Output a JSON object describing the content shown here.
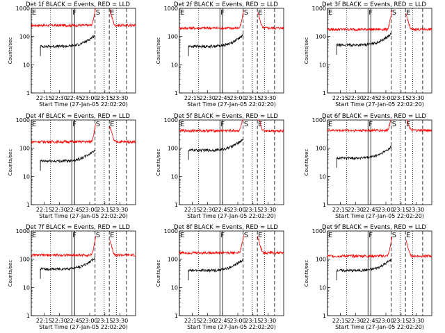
{
  "chart_data": [
    {
      "type": "line",
      "title": "Det 1f BLACK = Events, RED = LLD",
      "xlabel": "Start Time (27-Jan-05 22:02:20)",
      "ylabel": "Counts/sec",
      "yscale": "log",
      "ylim": [
        1,
        1000
      ],
      "yticks": [
        "1",
        "10",
        "100",
        "1000"
      ],
      "xlim_minutes": [
        0,
        103
      ],
      "xticks": [
        {
          "label": "22:15",
          "minutes": 12.67
        },
        {
          "label": "22:30",
          "minutes": 27.67
        },
        {
          "label": "22:45",
          "minutes": 42.67
        },
        {
          "label": "23:00",
          "minutes": 57.67
        },
        {
          "label": "23:15",
          "minutes": 72.67
        },
        {
          "label": "23:30",
          "minutes": 87.67
        }
      ],
      "series": [
        {
          "color": "#ff0000",
          "profile": {
            "start": 0,
            "end": 103,
            "base": 250,
            "gap": [
              64,
              77
            ]
          }
        },
        {
          "color": "#000000",
          "profile": {
            "start": 9,
            "end": 63,
            "base": 45,
            "gap": null
          }
        }
      ]
    },
    {
      "type": "line",
      "title": "Det 2f BLACK = Events, RED = LLD",
      "xlabel": "Start Time (27-Jan-05 22:02:20)",
      "ylabel": "Counts/sec",
      "yscale": "log",
      "ylim": [
        1,
        1000
      ],
      "yticks": [
        "1",
        "10",
        "100",
        "1000"
      ],
      "xlim_minutes": [
        0,
        103
      ],
      "xticks": [
        {
          "label": "22:15",
          "minutes": 12.67
        },
        {
          "label": "22:30",
          "minutes": 27.67
        },
        {
          "label": "22:45",
          "minutes": 42.67
        },
        {
          "label": "23:00",
          "minutes": 57.67
        },
        {
          "label": "23:15",
          "minutes": 72.67
        },
        {
          "label": "23:30",
          "minutes": 87.67
        }
      ],
      "series": [
        {
          "color": "#ff0000",
          "profile": {
            "start": 0,
            "end": 103,
            "base": 200,
            "gap": [
              64,
              77
            ]
          }
        },
        {
          "color": "#000000",
          "profile": {
            "start": 9,
            "end": 63,
            "base": 45,
            "gap": null
          }
        }
      ]
    },
    {
      "type": "line",
      "title": "Det 3f BLACK = Events, RED = LLD",
      "xlabel": "Start Time (27-Jan-05 22:02:20)",
      "ylabel": "Counts/sec",
      "yscale": "log",
      "ylim": [
        1,
        1000
      ],
      "yticks": [
        "1",
        "10",
        "100",
        "1000"
      ],
      "xlim_minutes": [
        0,
        103
      ],
      "xticks": [
        {
          "label": "22:15",
          "minutes": 12.67
        },
        {
          "label": "22:30",
          "minutes": 27.67
        },
        {
          "label": "22:45",
          "minutes": 42.67
        },
        {
          "label": "23:00",
          "minutes": 57.67
        },
        {
          "label": "23:15",
          "minutes": 72.67
        },
        {
          "label": "23:30",
          "minutes": 87.67
        }
      ],
      "series": [
        {
          "color": "#ff0000",
          "profile": {
            "start": 0,
            "end": 103,
            "base": 180,
            "gap": [
              64,
              77
            ]
          }
        },
        {
          "color": "#000000",
          "profile": {
            "start": 9,
            "end": 63,
            "base": 50,
            "gap": null
          }
        }
      ]
    },
    {
      "type": "line",
      "title": "Det 4f BLACK = Events, RED = LLD",
      "xlabel": "Start Time (27-Jan-05 22:02:20)",
      "ylabel": "Counts/sec",
      "yscale": "log",
      "ylim": [
        1,
        1000
      ],
      "yticks": [
        "1",
        "10",
        "100",
        "1000"
      ],
      "xlim_minutes": [
        0,
        103
      ],
      "xticks": [
        {
          "label": "22:15",
          "minutes": 12.67
        },
        {
          "label": "22:30",
          "minutes": 27.67
        },
        {
          "label": "22:45",
          "minutes": 42.67
        },
        {
          "label": "23:00",
          "minutes": 57.67
        },
        {
          "label": "23:15",
          "minutes": 72.67
        },
        {
          "label": "23:30",
          "minutes": 87.67
        }
      ],
      "series": [
        {
          "color": "#ff0000",
          "profile": {
            "start": 0,
            "end": 103,
            "base": 170,
            "gap": [
              64,
              77
            ]
          }
        },
        {
          "color": "#000000",
          "profile": {
            "start": 9,
            "end": 63,
            "base": 35,
            "gap": null
          }
        }
      ]
    },
    {
      "type": "line",
      "title": "Det 5f BLACK = Events, RED = LLD",
      "xlabel": "Start Time (27-Jan-05 22:02:20)",
      "ylabel": "Counts/sec",
      "yscale": "log",
      "ylim": [
        1,
        1000
      ],
      "yticks": [
        "1",
        "10",
        "100",
        "1000"
      ],
      "xlim_minutes": [
        0,
        103
      ],
      "xticks": [
        {
          "label": "22:15",
          "minutes": 12.67
        },
        {
          "label": "22:30",
          "minutes": 27.67
        },
        {
          "label": "22:45",
          "minutes": 42.67
        },
        {
          "label": "23:00",
          "minutes": 57.67
        },
        {
          "label": "23:15",
          "minutes": 72.67
        },
        {
          "label": "23:30",
          "minutes": 87.67
        }
      ],
      "series": [
        {
          "color": "#ff0000",
          "profile": {
            "start": 0,
            "end": 103,
            "base": 420,
            "gap": [
              64,
              77
            ]
          }
        },
        {
          "color": "#000000",
          "profile": {
            "start": 9,
            "end": 63,
            "base": 85,
            "gap": null
          }
        }
      ]
    },
    {
      "type": "line",
      "title": "Det 6f BLACK = Events, RED = LLD",
      "xlabel": "Start Time (27-Jan-05 22:02:20)",
      "ylabel": "Counts/sec",
      "yscale": "log",
      "ylim": [
        1,
        1000
      ],
      "yticks": [
        "1",
        "10",
        "100",
        "1000"
      ],
      "xlim_minutes": [
        0,
        103
      ],
      "xticks": [
        {
          "label": "22:15",
          "minutes": 12.67
        },
        {
          "label": "22:30",
          "minutes": 27.67
        },
        {
          "label": "22:45",
          "minutes": 42.67
        },
        {
          "label": "23:00",
          "minutes": 57.67
        },
        {
          "label": "23:15",
          "minutes": 72.67
        },
        {
          "label": "23:30",
          "minutes": 87.67
        }
      ],
      "series": [
        {
          "color": "#ff0000",
          "profile": {
            "start": 0,
            "end": 103,
            "base": 430,
            "gap": [
              64,
              77
            ]
          }
        },
        {
          "color": "#000000",
          "profile": {
            "start": 9,
            "end": 63,
            "base": 45,
            "gap": null
          }
        }
      ]
    },
    {
      "type": "line",
      "title": "Det 7f BLACK = Events, RED = LLD",
      "xlabel": "Start Time (27-Jan-05 22:02:20)",
      "ylabel": "Counts/sec",
      "yscale": "log",
      "ylim": [
        1,
        1000
      ],
      "yticks": [
        "1",
        "10",
        "100",
        "1000"
      ],
      "xlim_minutes": [
        0,
        103
      ],
      "xticks": [
        {
          "label": "22:15",
          "minutes": 12.67
        },
        {
          "label": "22:30",
          "minutes": 27.67
        },
        {
          "label": "22:45",
          "minutes": 42.67
        },
        {
          "label": "23:00",
          "minutes": 57.67
        },
        {
          "label": "23:15",
          "minutes": 72.67
        },
        {
          "label": "23:30",
          "minutes": 87.67
        }
      ],
      "series": [
        {
          "color": "#ff0000",
          "profile": {
            "start": 0,
            "end": 103,
            "base": 140,
            "gap": [
              64,
              77
            ]
          }
        },
        {
          "color": "#000000",
          "profile": {
            "start": 9,
            "end": 63,
            "base": 45,
            "gap": null
          }
        }
      ]
    },
    {
      "type": "line",
      "title": "Det 8f BLACK = Events, RED = LLD",
      "xlabel": "Start Time (27-Jan-05 22:02:20)",
      "ylabel": "Counts/sec",
      "yscale": "log",
      "ylim": [
        1,
        1000
      ],
      "yticks": [
        "1",
        "10",
        "100",
        "1000"
      ],
      "xlim_minutes": [
        0,
        103
      ],
      "xticks": [
        {
          "label": "22:15",
          "minutes": 12.67
        },
        {
          "label": "22:30",
          "minutes": 27.67
        },
        {
          "label": "22:45",
          "minutes": 42.67
        },
        {
          "label": "23:00",
          "minutes": 57.67
        },
        {
          "label": "23:15",
          "minutes": 72.67
        },
        {
          "label": "23:30",
          "minutes": 87.67
        }
      ],
      "series": [
        {
          "color": "#ff0000",
          "profile": {
            "start": 0,
            "end": 103,
            "base": 170,
            "gap": [
              64,
              77
            ]
          }
        },
        {
          "color": "#000000",
          "profile": {
            "start": 9,
            "end": 63,
            "base": 40,
            "gap": null
          }
        }
      ]
    },
    {
      "type": "line",
      "title": "Det 9f BLACK = Events, RED = LLD",
      "xlabel": "Start Time (27-Jan-05 22:02:20)",
      "ylabel": "Counts/sec",
      "yscale": "log",
      "ylim": [
        1,
        1000
      ],
      "yticks": [
        "1",
        "10",
        "100",
        "1000"
      ],
      "xlim_minutes": [
        0,
        103
      ],
      "xticks": [
        {
          "label": "22:15",
          "minutes": 12.67
        },
        {
          "label": "22:30",
          "minutes": 27.67
        },
        {
          "label": "22:45",
          "minutes": 42.67
        },
        {
          "label": "23:00",
          "minutes": 57.67
        },
        {
          "label": "23:15",
          "minutes": 72.67
        },
        {
          "label": "23:30",
          "minutes": 87.67
        }
      ],
      "series": [
        {
          "color": "#ff0000",
          "profile": {
            "start": 0,
            "end": 103,
            "base": 130,
            "gap": [
              64,
              77
            ]
          }
        },
        {
          "color": "#000000",
          "profile": {
            "start": 9,
            "end": 63,
            "base": 40,
            "gap": null
          }
        }
      ]
    }
  ],
  "markers": [
    {
      "label": "E",
      "minutes": 0,
      "style": "solid"
    },
    {
      "label": "",
      "minutes": 19,
      "style": "dotted"
    },
    {
      "label": "F",
      "minutes": 40,
      "style": "solid-double"
    },
    {
      "label": "S",
      "minutes": 63,
      "style": "dashed"
    },
    {
      "label": "",
      "minutes": 72,
      "style": "dotted"
    },
    {
      "label": "E",
      "minutes": 77,
      "style": "dashed"
    },
    {
      "label": "",
      "minutes": 84,
      "style": "dotted"
    },
    {
      "label": "",
      "minutes": 94,
      "style": "dashed"
    }
  ]
}
